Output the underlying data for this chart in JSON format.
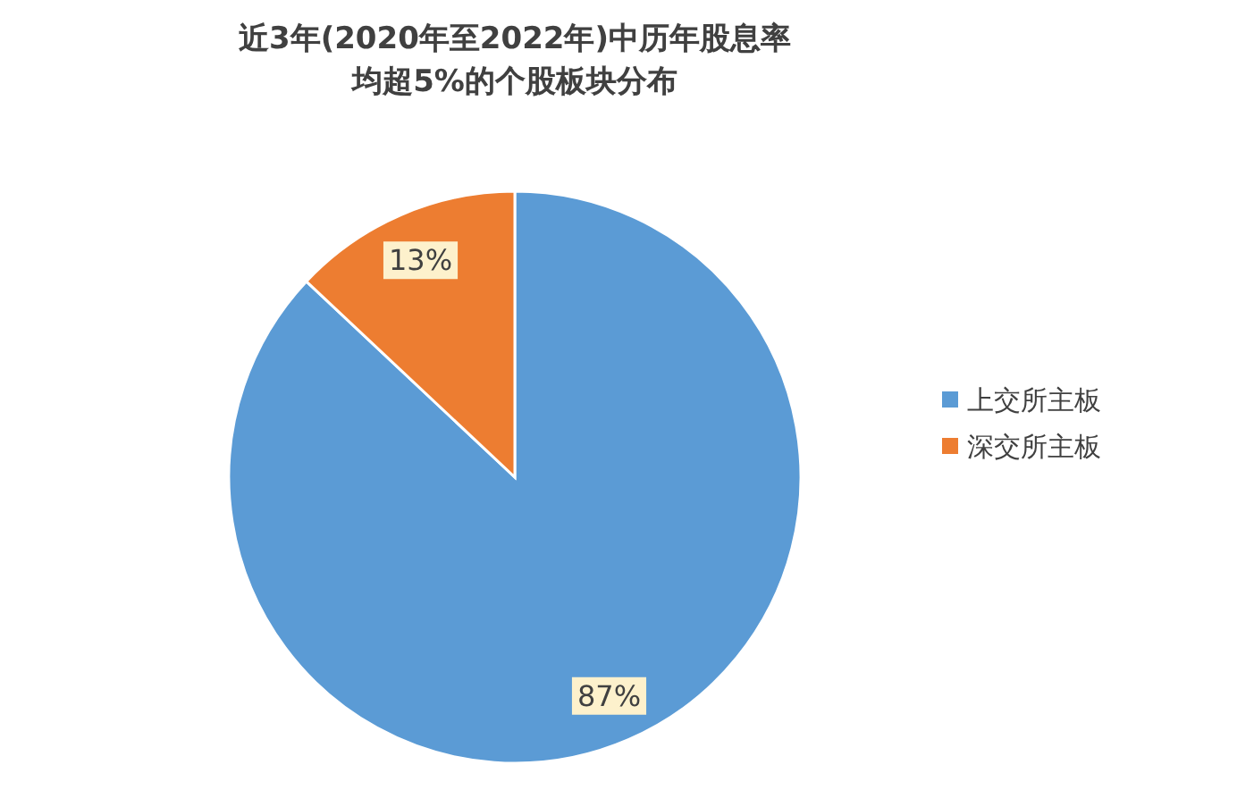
{
  "chart_data": {
    "type": "pie",
    "title": "近3年(2020年至2022年)中历年股息率均超5%的个股板块分布",
    "categories": [
      "上交所主板",
      "深交所主板"
    ],
    "values": [
      87,
      13
    ],
    "colors": [
      "#5b9bd5",
      "#ed7d31"
    ],
    "value_labels": [
      "87%",
      "13%"
    ],
    "legend": "right"
  }
}
